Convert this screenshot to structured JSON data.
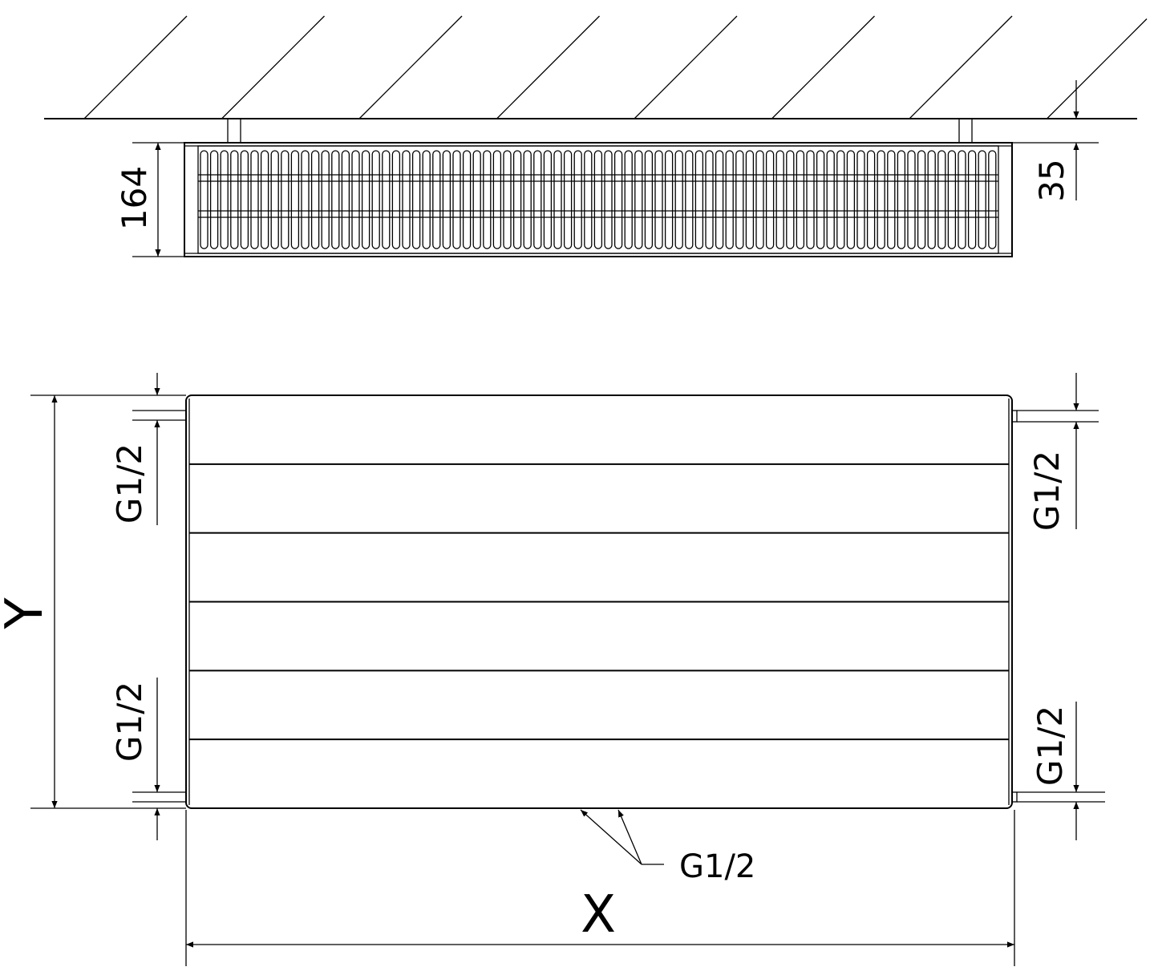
{
  "top_view": {
    "depth_dimension": "164",
    "wall_gap_dimension": "35"
  },
  "front_view": {
    "height_label": "Y",
    "width_label": "X",
    "connection_labels": {
      "left_top": "G1/2",
      "left_bottom": "G1/2",
      "right_top": "G1/2",
      "right_bottom": "G1/2",
      "bottom": "G1/2"
    },
    "panel_grooves": 5
  },
  "colors": {
    "line": "#000000",
    "background": "#ffffff"
  }
}
